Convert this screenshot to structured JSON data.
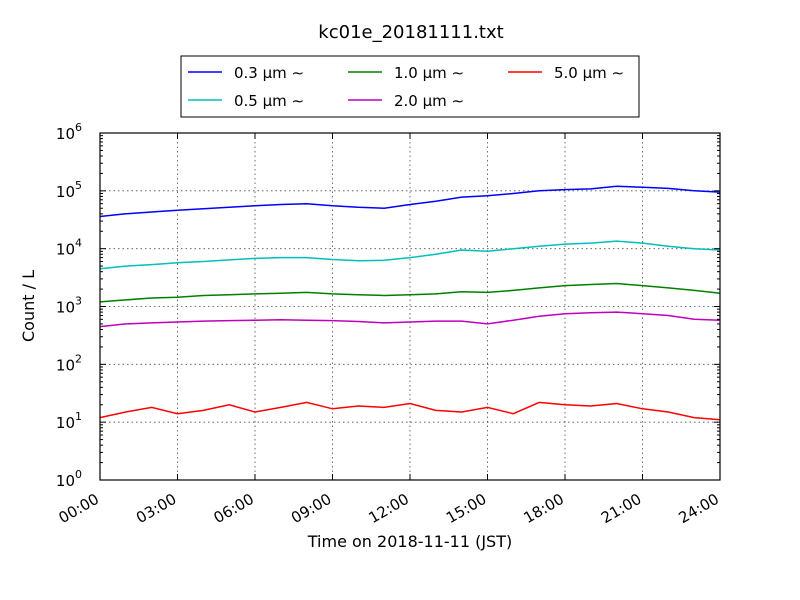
{
  "chart_data": {
    "type": "line",
    "title": "kc01e_20181111.txt",
    "xlabel": "Time on 2018-11-11 (JST)",
    "ylabel": "Count / L",
    "y_scale": "log",
    "ylim": [
      1,
      1000000
    ],
    "xlim": [
      "00:00",
      "24:00"
    ],
    "x_ticks": [
      "00:00",
      "03:00",
      "06:00",
      "09:00",
      "12:00",
      "15:00",
      "18:00",
      "21:00",
      "24:00"
    ],
    "y_ticks": [
      {
        "base": "10",
        "exp": "0"
      },
      {
        "base": "10",
        "exp": "1"
      },
      {
        "base": "10",
        "exp": "2"
      },
      {
        "base": "10",
        "exp": "3"
      },
      {
        "base": "10",
        "exp": "4"
      },
      {
        "base": "10",
        "exp": "5"
      },
      {
        "base": "10",
        "exp": "6"
      }
    ],
    "grid": true,
    "legend_position": "top, above plot",
    "x": [
      "00:00",
      "01:00",
      "02:00",
      "03:00",
      "04:00",
      "05:00",
      "06:00",
      "07:00",
      "08:00",
      "09:00",
      "10:00",
      "11:00",
      "12:00",
      "13:00",
      "14:00",
      "15:00",
      "16:00",
      "17:00",
      "18:00",
      "19:00",
      "20:00",
      "21:00",
      "22:00",
      "23:00",
      "24:00"
    ],
    "series": [
      {
        "name": "0.3 μm ∼",
        "color": "#0000ff",
        "values": [
          36000,
          40000,
          43000,
          46000,
          49000,
          52000,
          55000,
          58000,
          60000,
          55000,
          52000,
          50000,
          58000,
          66000,
          78000,
          82000,
          90000,
          100000,
          105000,
          108000,
          120000,
          115000,
          110000,
          100000,
          95000
        ]
      },
      {
        "name": "0.5 μm ∼",
        "color": "#00bfbf",
        "values": [
          4500,
          5000,
          5300,
          5700,
          6000,
          6400,
          6800,
          7000,
          7000,
          6500,
          6200,
          6300,
          7000,
          8000,
          9500,
          9000,
          10000,
          11000,
          12000,
          12500,
          13500,
          12500,
          11000,
          10000,
          9500
        ]
      },
      {
        "name": "1.0 μm ∼",
        "color": "#008000",
        "values": [
          1200,
          1300,
          1400,
          1450,
          1550,
          1600,
          1650,
          1700,
          1750,
          1650,
          1600,
          1550,
          1600,
          1650,
          1800,
          1750,
          1900,
          2100,
          2300,
          2400,
          2500,
          2300,
          2100,
          1900,
          1700
        ]
      },
      {
        "name": "2.0 μm ∼",
        "color": "#bf00bf",
        "values": [
          450,
          500,
          520,
          540,
          560,
          570,
          580,
          590,
          580,
          570,
          550,
          520,
          540,
          560,
          560,
          500,
          580,
          680,
          750,
          780,
          800,
          750,
          700,
          600,
          580
        ]
      },
      {
        "name": "5.0 μm ∼",
        "color": "#ff0000",
        "values": [
          12,
          15,
          18,
          14,
          16,
          20,
          15,
          18,
          22,
          17,
          19,
          18,
          21,
          16,
          15,
          18,
          14,
          22,
          20,
          19,
          21,
          17,
          15,
          12,
          11
        ]
      }
    ]
  }
}
